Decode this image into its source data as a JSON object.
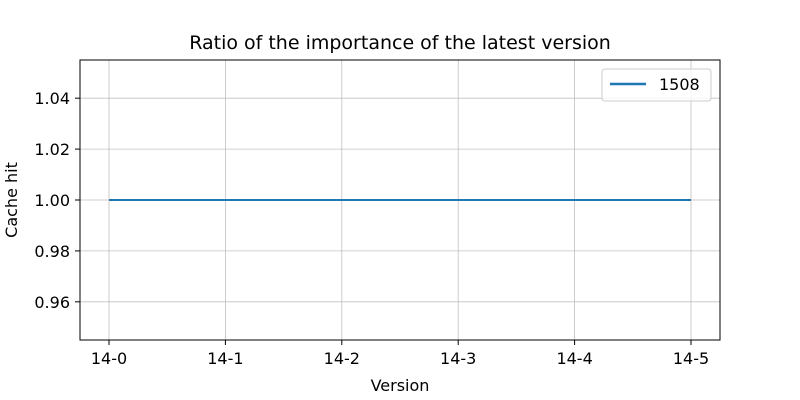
{
  "chart_data": {
    "type": "line",
    "title": "Ratio of the importance of the latest version",
    "xlabel": "Version",
    "ylabel": "Cache hit",
    "categories": [
      "14-0",
      "14-1",
      "14-2",
      "14-3",
      "14-4",
      "14-5"
    ],
    "series": [
      {
        "name": "1508",
        "values": [
          1.0,
          1.0,
          1.0,
          1.0,
          1.0,
          1.0
        ],
        "color": "#1f77b4"
      }
    ],
    "ylim": [
      0.945,
      1.055
    ],
    "yticks": [
      0.96,
      0.98,
      1.0,
      1.02,
      1.04
    ],
    "ytick_labels": [
      "0.96",
      "0.98",
      "1.00",
      "1.02",
      "1.04"
    ],
    "grid": true,
    "legend_position": "top-right"
  }
}
